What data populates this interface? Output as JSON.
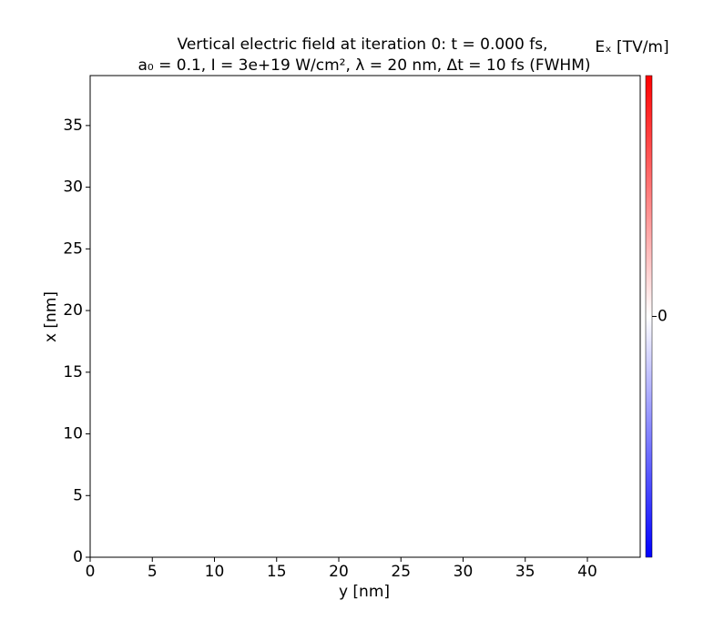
{
  "chart_data": {
    "type": "heatmap",
    "title": "Vertical electric field at iteration 0: t = 0.000 fs,",
    "subtitle": "a₀ = 0.1, I = 3e+19 W/cm², λ = 20 nm, Δt = 10 fs (FWHM)",
    "x_label": "y [nm]",
    "y_label": "x [nm]",
    "values": [
      [
        0
      ]
    ],
    "xlim": [
      0,
      44.25
    ],
    "ylim": [
      0,
      39.05
    ],
    "xticks": [
      0,
      5,
      10,
      15,
      20,
      25,
      30,
      35,
      40
    ],
    "yticks": [
      0,
      5,
      10,
      15,
      20,
      25,
      30,
      35
    ],
    "colorbar": {
      "label": "Eₓ [TV/m]",
      "lim": [
        -1,
        1
      ],
      "ticks": [
        0
      ],
      "colormap": [
        "#0000ff",
        "#ffffff",
        "#ff0000"
      ]
    }
  }
}
